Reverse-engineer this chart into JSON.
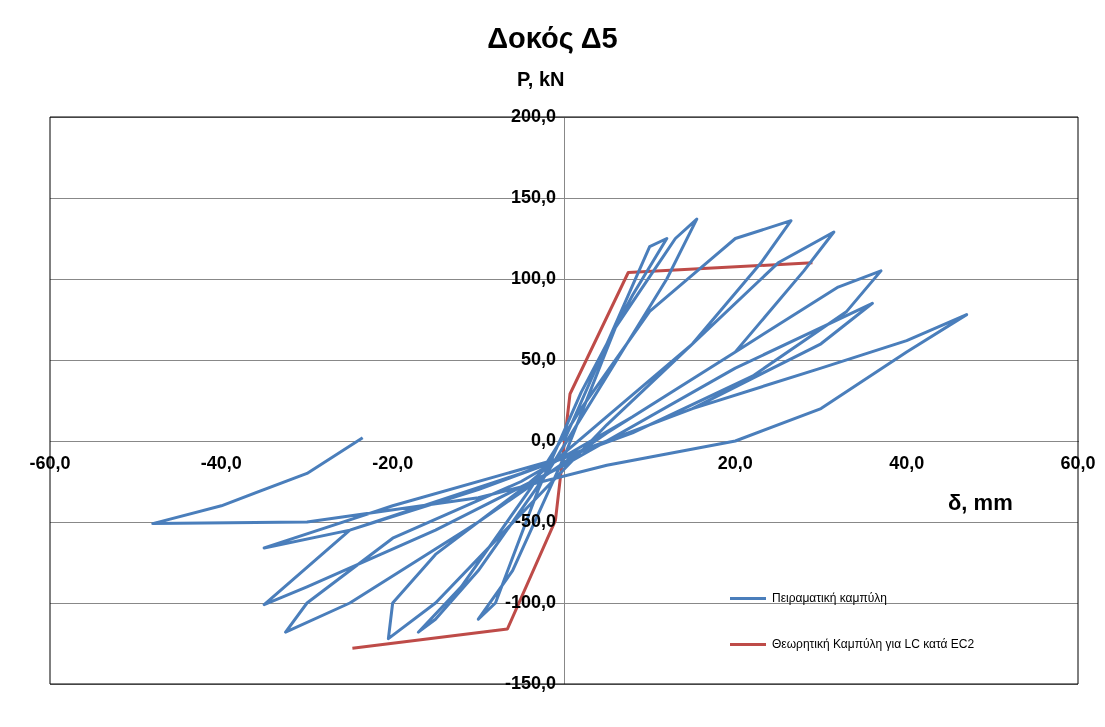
{
  "chart_data": {
    "type": "line",
    "title": "Δοκός Δ5",
    "xlabel": "δ, mm",
    "ylabel": "P, kN",
    "xlim": [
      -60,
      60
    ],
    "ylim": [
      -150,
      200
    ],
    "xticks": [
      {
        "value": -60,
        "label": "-60,0"
      },
      {
        "value": -40,
        "label": "-40,0"
      },
      {
        "value": -20,
        "label": "-20,0"
      },
      {
        "value": 0,
        "label": null
      },
      {
        "value": 20,
        "label": "20,0"
      },
      {
        "value": 40,
        "label": "40,0"
      },
      {
        "value": 60,
        "label": "60,0"
      }
    ],
    "yticks": [
      {
        "value": -150,
        "label": "-150,0"
      },
      {
        "value": -100,
        "label": "-100,0"
      },
      {
        "value": -50,
        "label": "-50,0"
      },
      {
        "value": 0,
        "label": "0,0"
      },
      {
        "value": 50,
        "label": "50,0"
      },
      {
        "value": 100,
        "label": "100,0"
      },
      {
        "value": 150,
        "label": "150,0"
      },
      {
        "value": 200,
        "label": "200,0"
      }
    ],
    "grid": "y",
    "legend": "bottom right",
    "marker": "none",
    "line_style": "solid",
    "series": [
      {
        "name": "Πειραματική καμπύλη",
        "color": "#4a7ebb",
        "x": [
          0,
          5,
          10,
          12,
          8,
          2,
          -3,
          -8,
          -10,
          -6,
          0,
          6,
          13,
          15.5,
          12,
          5,
          -2,
          -10,
          -15,
          -17,
          -12,
          -4,
          2,
          10,
          20,
          26.5,
          23,
          15,
          5,
          -5,
          -15,
          -20,
          -20.5,
          -15,
          -5,
          5,
          15,
          25,
          31.5,
          28,
          20,
          8,
          -5,
          -20,
          -30,
          -32.5,
          -25,
          -10,
          5,
          20,
          32,
          37,
          33,
          22,
          8,
          -10,
          -25,
          -35,
          -30,
          -15,
          0,
          20,
          30,
          36,
          30,
          15,
          0,
          -20,
          -35,
          -25,
          -5,
          15,
          30,
          40,
          47,
          40,
          30,
          20,
          5,
          -10,
          -30,
          -48,
          -40,
          -30,
          -23.5
        ],
        "values": [
          0,
          60,
          120,
          125,
          90,
          30,
          -30,
          -100,
          -110,
          -80,
          -10,
          70,
          125,
          137,
          100,
          40,
          -20,
          -80,
          -110,
          -118,
          -90,
          -30,
          20,
          80,
          125,
          136,
          110,
          60,
          15,
          -30,
          -70,
          -100,
          -122,
          -100,
          -45,
          10,
          60,
          110,
          129,
          105,
          55,
          15,
          -25,
          -60,
          -100,
          -118,
          -100,
          -50,
          5,
          55,
          95,
          105,
          80,
          40,
          5,
          -30,
          -55,
          -101,
          -90,
          -55,
          -15,
          45,
          70,
          85,
          60,
          20,
          -10,
          -40,
          -66,
          -55,
          -20,
          20,
          45,
          62,
          78,
          55,
          20,
          0,
          -15,
          -35,
          -50,
          -51,
          -40,
          -20,
          2
        ]
      },
      {
        "name": "Θεωρητική Καμπύλη για LC κατά EC2",
        "color": "#be4b48",
        "x": [
          -24.7,
          -6.6,
          -1,
          0.7,
          7.5,
          29
        ],
        "values": [
          -128,
          -116,
          -49,
          29,
          104,
          110
        ]
      }
    ]
  }
}
